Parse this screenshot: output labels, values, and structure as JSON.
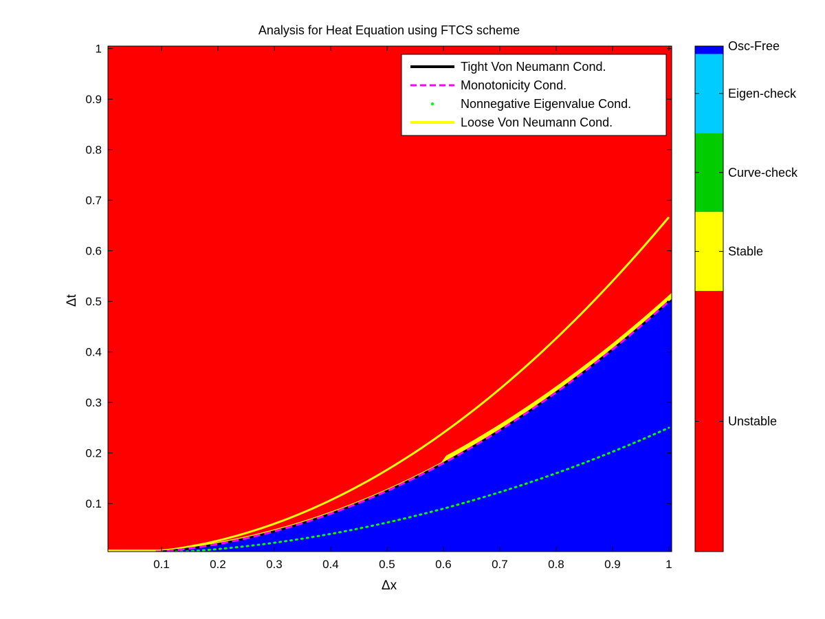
{
  "chart_data": {
    "type": "heatmap",
    "title": "Analysis for Heat Equation using FTCS scheme",
    "xlabel": "Δx",
    "ylabel": "Δt",
    "xlim": [
      0.005,
      1.005
    ],
    "ylim": [
      0.005,
      1.005
    ],
    "xticks": [
      0.1,
      0.2,
      0.3,
      0.4,
      0.5,
      0.6,
      0.7,
      0.8,
      0.9,
      1
    ],
    "xtick_labels": [
      "0.1",
      "0.2",
      "0.3",
      "0.4",
      "0.5",
      "0.6",
      "0.7",
      "0.8",
      "0.9",
      "1"
    ],
    "yticks": [
      0.1,
      0.2,
      0.3,
      0.4,
      0.5,
      0.6,
      0.7,
      0.8,
      0.9,
      1
    ],
    "ytick_labels": [
      "0.1",
      "0.2",
      "0.3",
      "0.4",
      "0.5",
      "0.6",
      "0.7",
      "0.8",
      "0.9",
      "1"
    ],
    "grid": false,
    "legend_position": "top-right",
    "regions": {
      "unstable_color": "#ff0000",
      "osc_free_color": "#0000ff",
      "stable_color": "#ffff00",
      "boundary_formula": "dt = dx^2 / 2"
    },
    "series": [
      {
        "name": "Tight Von Neumann Cond.",
        "style": "solid",
        "color": "#000000",
        "x": [
          0.1,
          0.2,
          0.3,
          0.4,
          0.5,
          0.6,
          0.7,
          0.8,
          0.9,
          1.0
        ],
        "y": [
          0.005,
          0.02,
          0.045,
          0.08,
          0.125,
          0.18,
          0.245,
          0.32,
          0.405,
          0.5
        ]
      },
      {
        "name": "Monotonicity Cond.",
        "style": "dashed",
        "color": "#ff00ff",
        "x": [
          0.1,
          0.2,
          0.3,
          0.4,
          0.5,
          0.6,
          0.7,
          0.8,
          0.9,
          1.0
        ],
        "y": [
          0.005,
          0.02,
          0.045,
          0.08,
          0.125,
          0.18,
          0.245,
          0.32,
          0.405,
          0.5
        ]
      },
      {
        "name": "Nonnegative Eigenvalue Cond.",
        "style": "dotted",
        "color": "#00ff00",
        "x": [
          0.1,
          0.2,
          0.3,
          0.4,
          0.5,
          0.6,
          0.7,
          0.8,
          0.9,
          1.0
        ],
        "y": [
          0.0025,
          0.01,
          0.0225,
          0.04,
          0.0625,
          0.09,
          0.1225,
          0.16,
          0.2025,
          0.25
        ]
      },
      {
        "name": "Loose Von Neumann Cond.",
        "style": "solid",
        "color": "#ffff00",
        "x": [
          0.1,
          0.2,
          0.3,
          0.4,
          0.5,
          0.6,
          0.7,
          0.8,
          0.9,
          1.0
        ],
        "y": [
          0.00667,
          0.02667,
          0.06,
          0.10667,
          0.16667,
          0.24,
          0.32667,
          0.42667,
          0.54,
          0.66667
        ]
      }
    ],
    "colorbar": {
      "entries": [
        {
          "label": "Unstable",
          "color": "#ff0000",
          "start": 0,
          "end": 3.3
        },
        {
          "label": "Stable",
          "color": "#ffff00",
          "start": 3.3,
          "end": 4.3
        },
        {
          "label": "Curve-check",
          "color": "#00cc00",
          "start": 4.3,
          "end": 5.3
        },
        {
          "label": "Eigen-check",
          "color": "#00ccff",
          "start": 5.3,
          "end": 6.3
        },
        {
          "label": "Osc-Free",
          "color": "#0000ff",
          "start": 6.3,
          "end": 6.4
        }
      ],
      "range": [
        0,
        6.4
      ]
    }
  }
}
